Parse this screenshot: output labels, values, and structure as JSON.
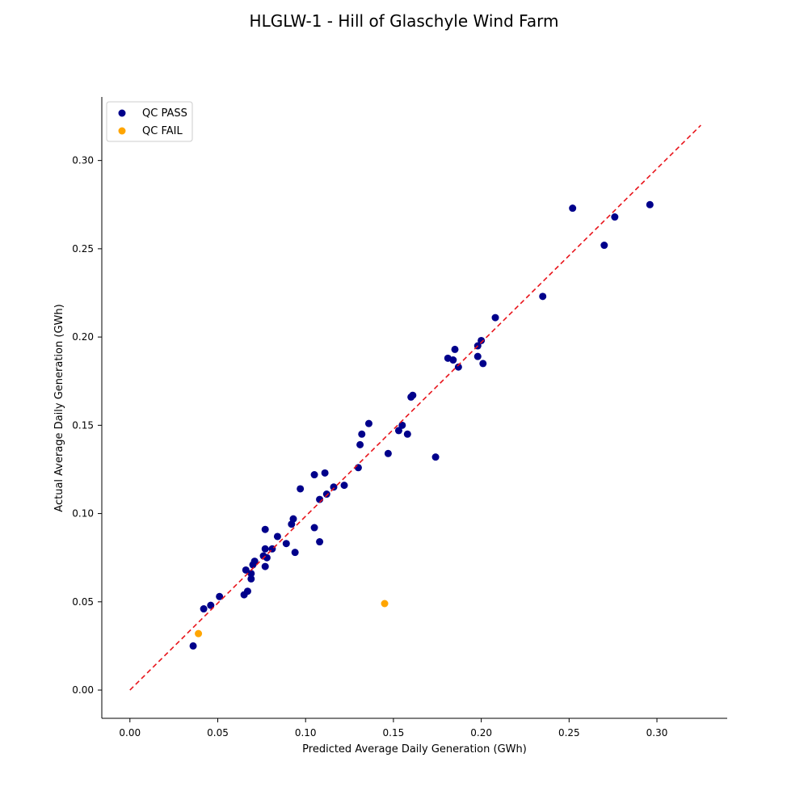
{
  "chart_data": {
    "type": "scatter",
    "title": "HLGLW-1 - Hill of Glaschyle Wind Farm",
    "xlabel": "Predicted Average Daily Generation (GWh)",
    "ylabel": "Actual Average Daily Generation (GWh)",
    "xlim": [
      -0.016,
      0.34
    ],
    "ylim": [
      -0.016,
      0.336
    ],
    "xticks": [
      "0.00",
      "0.05",
      "0.10",
      "0.15",
      "0.20",
      "0.25",
      "0.30"
    ],
    "yticks": [
      "0.00",
      "0.05",
      "0.10",
      "0.15",
      "0.20",
      "0.25",
      "0.30"
    ],
    "grid": false,
    "legend_position": "top-left",
    "reference_line": {
      "x": [
        0,
        0.325
      ],
      "y": [
        0,
        0.32
      ],
      "color": "#e8141b",
      "style": "dashed"
    },
    "series": [
      {
        "name": "QC PASS",
        "color": "#00008b",
        "points": [
          [
            0.036,
            0.025
          ],
          [
            0.042,
            0.046
          ],
          [
            0.046,
            0.048
          ],
          [
            0.051,
            0.053
          ],
          [
            0.065,
            0.054
          ],
          [
            0.066,
            0.068
          ],
          [
            0.067,
            0.056
          ],
          [
            0.069,
            0.066
          ],
          [
            0.069,
            0.063
          ],
          [
            0.07,
            0.071
          ],
          [
            0.071,
            0.073
          ],
          [
            0.076,
            0.076
          ],
          [
            0.077,
            0.08
          ],
          [
            0.077,
            0.091
          ],
          [
            0.078,
            0.075
          ],
          [
            0.077,
            0.07
          ],
          [
            0.081,
            0.08
          ],
          [
            0.084,
            0.087
          ],
          [
            0.089,
            0.083
          ],
          [
            0.092,
            0.094
          ],
          [
            0.093,
            0.097
          ],
          [
            0.094,
            0.078
          ],
          [
            0.097,
            0.114
          ],
          [
            0.105,
            0.122
          ],
          [
            0.105,
            0.092
          ],
          [
            0.108,
            0.084
          ],
          [
            0.108,
            0.108
          ],
          [
            0.111,
            0.123
          ],
          [
            0.112,
            0.111
          ],
          [
            0.116,
            0.115
          ],
          [
            0.122,
            0.116
          ],
          [
            0.13,
            0.126
          ],
          [
            0.131,
            0.139
          ],
          [
            0.132,
            0.145
          ],
          [
            0.136,
            0.151
          ],
          [
            0.147,
            0.134
          ],
          [
            0.153,
            0.147
          ],
          [
            0.155,
            0.15
          ],
          [
            0.158,
            0.145
          ],
          [
            0.16,
            0.166
          ],
          [
            0.161,
            0.167
          ],
          [
            0.174,
            0.132
          ],
          [
            0.181,
            0.188
          ],
          [
            0.184,
            0.187
          ],
          [
            0.185,
            0.193
          ],
          [
            0.187,
            0.183
          ],
          [
            0.198,
            0.189
          ],
          [
            0.198,
            0.195
          ],
          [
            0.2,
            0.198
          ],
          [
            0.201,
            0.185
          ],
          [
            0.208,
            0.211
          ],
          [
            0.235,
            0.223
          ],
          [
            0.252,
            0.273
          ],
          [
            0.27,
            0.252
          ],
          [
            0.276,
            0.268
          ],
          [
            0.296,
            0.275
          ]
        ]
      },
      {
        "name": "QC FAIL",
        "color": "#ffa500",
        "points": [
          [
            0.039,
            0.032
          ],
          [
            0.145,
            0.049
          ]
        ]
      }
    ]
  }
}
